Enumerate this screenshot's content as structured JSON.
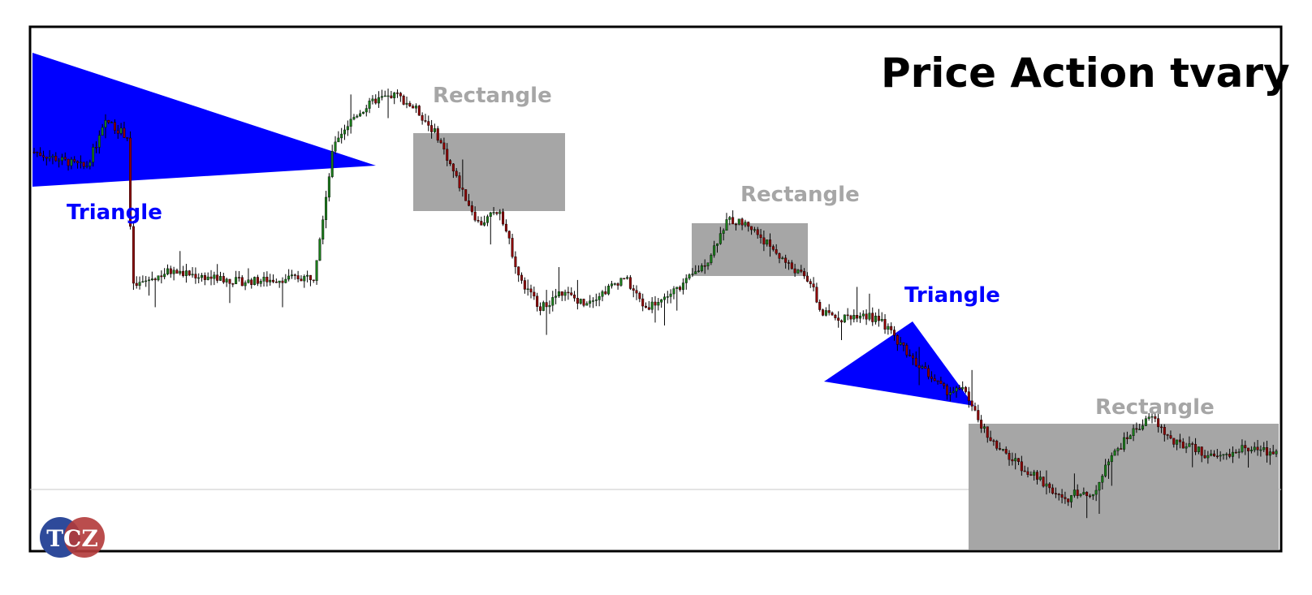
{
  "title": "Price Action tvary",
  "logo": {
    "text": "TCZ",
    "colors": [
      "#2e4a9a",
      "#b23a3a"
    ]
  },
  "patterns": [
    {
      "type": "triangle",
      "label": "Triangle",
      "color": "#0000ff"
    },
    {
      "type": "rectangle",
      "label": "Rectangle",
      "color": "#a6a6a6"
    },
    {
      "type": "rectangle",
      "label": "Rectangle",
      "color": "#a6a6a6"
    },
    {
      "type": "triangle",
      "label": "Triangle",
      "color": "#0000ff"
    },
    {
      "type": "rectangle",
      "label": "Rectangle",
      "color": "#a6a6a6"
    }
  ],
  "chart_data": {
    "type": "candlestick",
    "title": "Price Action tvary",
    "up_color": "#1a7a1a",
    "down_color": "#8b0000",
    "price_path": [
      [
        0,
        77
      ],
      [
        5,
        74
      ],
      [
        7,
        83
      ],
      [
        9,
        80
      ],
      [
        9.5,
        51
      ],
      [
        13,
        54
      ],
      [
        20,
        52
      ],
      [
        27,
        53
      ],
      [
        29,
        79
      ],
      [
        31,
        84
      ],
      [
        33,
        87
      ],
      [
        35,
        88
      ],
      [
        37,
        85
      ],
      [
        39,
        80
      ],
      [
        41,
        71
      ],
      [
        43,
        63
      ],
      [
        45,
        66
      ],
      [
        47,
        52
      ],
      [
        49,
        47
      ],
      [
        51,
        50
      ],
      [
        53,
        48
      ],
      [
        55,
        50
      ],
      [
        57,
        53
      ],
      [
        59,
        47
      ],
      [
        61,
        49
      ],
      [
        63,
        52
      ],
      [
        65,
        56
      ],
      [
        67,
        64
      ],
      [
        69,
        63
      ],
      [
        71,
        59
      ],
      [
        73,
        55
      ],
      [
        75,
        52
      ],
      [
        76,
        46
      ],
      [
        78,
        45
      ],
      [
        80,
        46
      ],
      [
        82,
        44
      ],
      [
        85,
        37
      ],
      [
        88,
        31
      ],
      [
        90,
        31
      ],
      [
        91,
        26
      ],
      [
        93,
        20
      ],
      [
        95,
        17
      ],
      [
        97,
        14
      ],
      [
        99,
        11
      ],
      [
        100,
        9
      ],
      [
        100.5,
        12
      ],
      [
        102,
        10
      ],
      [
        104,
        18
      ],
      [
        106,
        23
      ],
      [
        108,
        26
      ],
      [
        110,
        21
      ],
      [
        112,
        20
      ],
      [
        114,
        18
      ],
      [
        117,
        20
      ],
      [
        120,
        19
      ]
    ],
    "y_range": [
      0,
      100
    ]
  }
}
